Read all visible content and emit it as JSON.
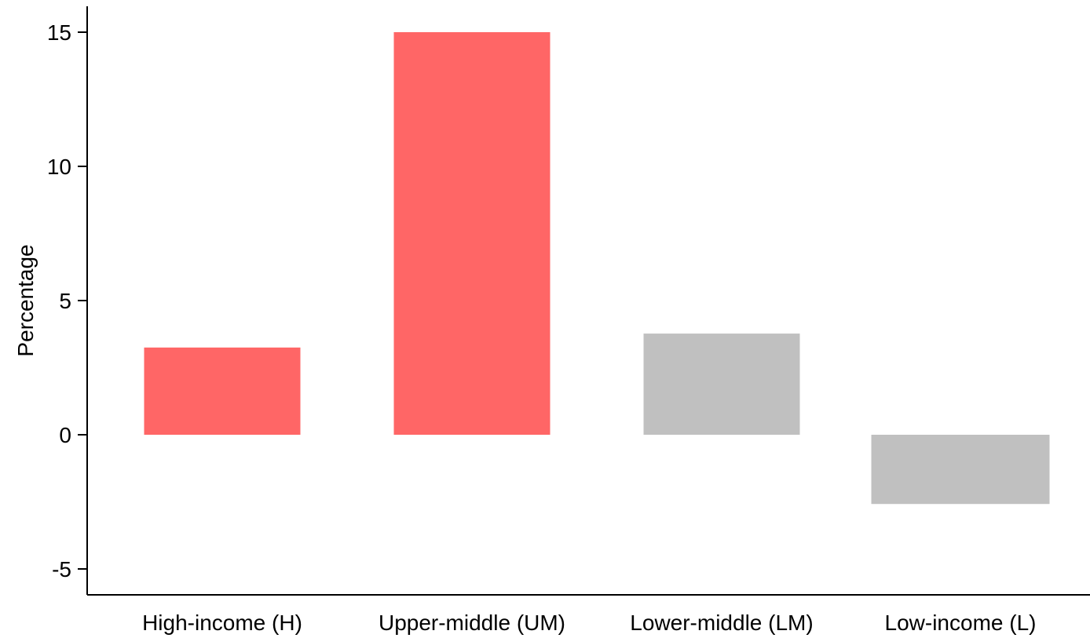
{
  "chart_data": {
    "type": "bar",
    "title": "",
    "xlabel": "",
    "ylabel": "Percentage",
    "categories": [
      "High-income (H)",
      "Upper-middle (UM)",
      "Lower-middle (LM)",
      "Low-income (L)"
    ],
    "values": [
      3.25,
      15.0,
      3.77,
      -2.58
    ],
    "bar_colors": [
      "#ff6666",
      "#ff6666",
      "#c0c0c0",
      "#c0c0c0"
    ],
    "ylim": [
      -6,
      16
    ],
    "yticks": [
      -5,
      0,
      5,
      10,
      15
    ],
    "ytick_labels": [
      "-5",
      "0",
      "5",
      "10",
      "15"
    ],
    "grid": false,
    "legend": "none"
  }
}
